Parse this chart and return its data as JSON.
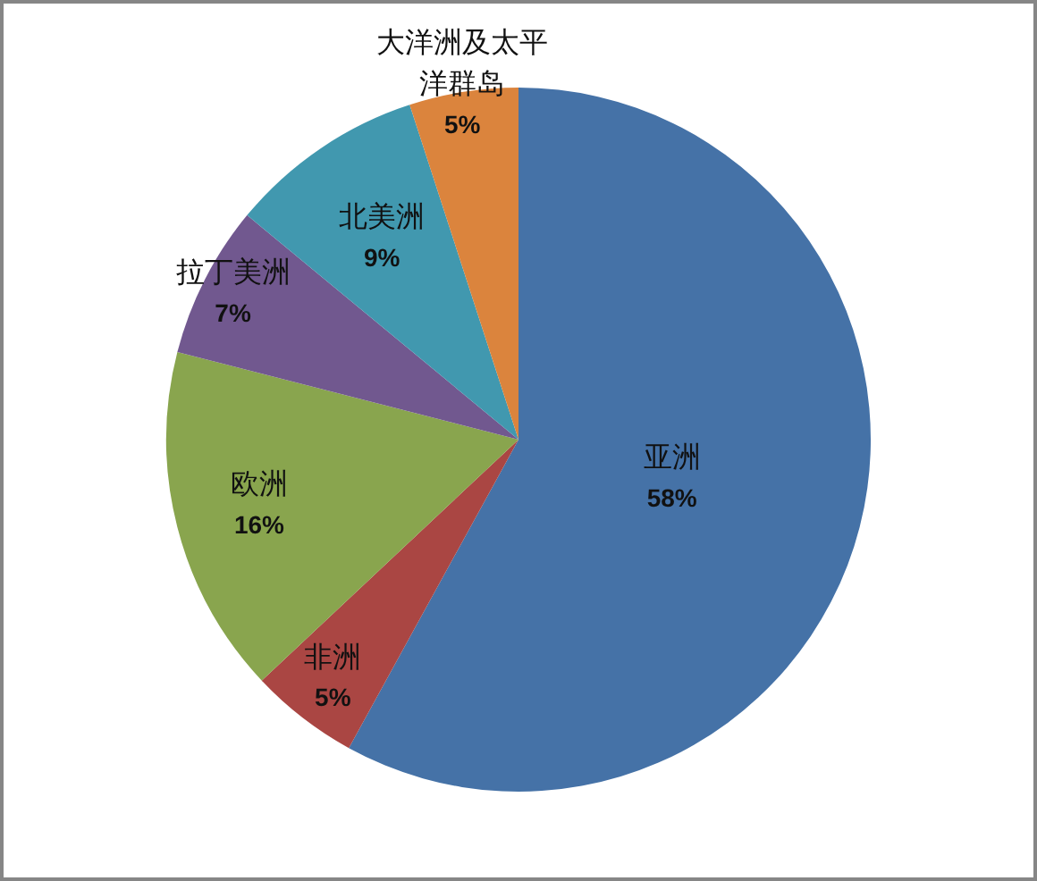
{
  "chart_data": {
    "type": "pie",
    "categories": [
      "亚洲",
      "非洲",
      "欧洲",
      "拉丁美洲",
      "北美洲",
      "大洋洲及太平洋群岛"
    ],
    "values": [
      58,
      5,
      16,
      7,
      9,
      5
    ],
    "colors": [
      "#4572a7",
      "#aa4643",
      "#89a54e",
      "#71588f",
      "#4198af",
      "#db843d"
    ],
    "value_labels": [
      "58%",
      "5%",
      "16%",
      "7%",
      "9%",
      "5%"
    ]
  }
}
